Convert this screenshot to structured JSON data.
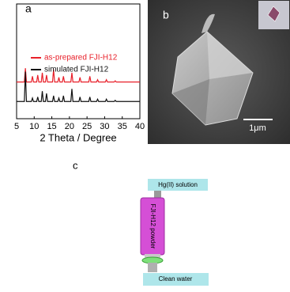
{
  "chart_data": {
    "type": "line",
    "xlabel": "2 Theta / Degree",
    "x": [
      5,
      7.2,
      7.5,
      7.8,
      9.2,
      9.5,
      9.8,
      10.7,
      11,
      11.3,
      12,
      12.3,
      12.6,
      13.2,
      13.5,
      13.8,
      15.2,
      15.5,
      15.8,
      16.7,
      17,
      17.3,
      18,
      18.3,
      18.6,
      20.4,
      20.7,
      21,
      22.7,
      23,
      23.3,
      25.5,
      25.8,
      26.1,
      27.7,
      28,
      28.3,
      30.2,
      30.5,
      30.8,
      32.7,
      33,
      33.3,
      40
    ],
    "series": [
      {
        "name": "as-prepared FJI-H12",
        "color": "#e8202a",
        "values": [
          32,
          32,
          44,
          32,
          32,
          37,
          32,
          32,
          38,
          32,
          32,
          40,
          32,
          32,
          38,
          32,
          32,
          43,
          32,
          32,
          36,
          32,
          32,
          37,
          32,
          32,
          40,
          32,
          32,
          36,
          32,
          32,
          37,
          32,
          32,
          34,
          32,
          32,
          34,
          32,
          32,
          33,
          32,
          32
        ]
      },
      {
        "name": "simulated FJI-H12",
        "color": "#111111",
        "values": [
          15,
          15,
          41,
          15,
          15,
          18,
          15,
          15,
          19,
          15,
          15,
          24,
          15,
          15,
          22,
          15,
          15,
          20,
          15,
          15,
          18,
          15,
          15,
          20,
          15,
          15,
          26,
          15,
          15,
          19,
          15,
          15,
          19,
          15,
          15,
          17,
          15,
          15,
          17,
          15,
          15,
          16,
          15,
          15
        ]
      }
    ],
    "xlim": [
      5,
      40
    ],
    "xticks": [
      5,
      10,
      15,
      20,
      25,
      30,
      35,
      40
    ],
    "ylim": [
      0,
      100
    ],
    "legend": "upper left",
    "grid": false
  },
  "panel_labels": [
    "a",
    "b",
    "c"
  ],
  "sem_image": {
    "scale_bar": "1μm"
  },
  "diagram": {
    "inlet": "Hg(II) solution",
    "column": "FJI-H12 powder",
    "outlet": "Clean water"
  }
}
